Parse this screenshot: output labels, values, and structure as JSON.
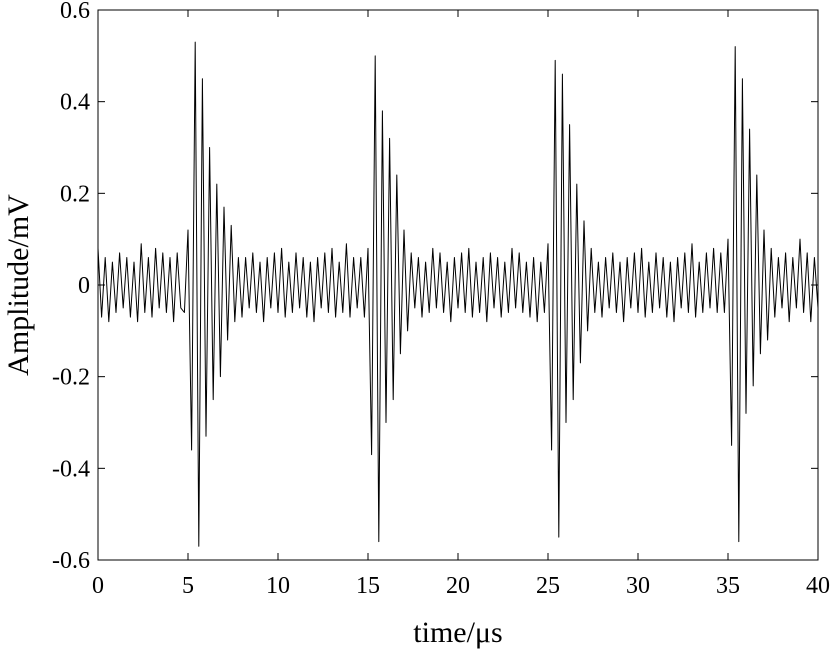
{
  "chart_data": {
    "type": "line",
    "xlabel": "time/μs",
    "ylabel": "Amplitude/mV",
    "xlim": [
      0,
      40
    ],
    "ylim": [
      -0.6,
      0.6
    ],
    "xticks": [
      0,
      5,
      10,
      15,
      20,
      25,
      30,
      35,
      40
    ],
    "yticks": [
      -0.6,
      -0.4,
      -0.2,
      0,
      0.2,
      0.4,
      0.6
    ],
    "color": "#000000",
    "x": [
      0,
      0.2,
      0.4,
      0.6,
      0.8,
      1,
      1.2,
      1.4,
      1.6,
      1.8,
      2,
      2.2,
      2.4,
      2.6,
      2.8,
      3,
      3.2,
      3.4,
      3.6,
      3.8,
      4,
      4.2,
      4.4,
      4.6,
      4.8,
      5,
      5.2,
      5.4,
      5.6,
      5.8,
      6,
      6.2,
      6.4,
      6.6,
      6.8,
      7,
      7.2,
      7.4,
      7.6,
      7.8,
      8,
      8.2,
      8.4,
      8.6,
      8.8,
      9,
      9.2,
      9.4,
      9.6,
      9.8,
      10,
      10.2,
      10.4,
      10.6,
      10.8,
      11,
      11.2,
      11.4,
      11.6,
      11.8,
      12,
      12.2,
      12.4,
      12.6,
      12.8,
      13,
      13.2,
      13.4,
      13.6,
      13.8,
      14,
      14.2,
      14.4,
      14.6,
      14.8,
      15,
      15.2,
      15.4,
      15.6,
      15.8,
      16,
      16.2,
      16.4,
      16.6,
      16.8,
      17,
      17.2,
      17.4,
      17.6,
      17.8,
      18,
      18.2,
      18.4,
      18.6,
      18.8,
      19,
      19.2,
      19.4,
      19.6,
      19.8,
      20,
      20.2,
      20.4,
      20.6,
      20.8,
      21,
      21.2,
      21.4,
      21.6,
      21.8,
      22,
      22.2,
      22.4,
      22.6,
      22.8,
      23,
      23.2,
      23.4,
      23.6,
      23.8,
      24,
      24.2,
      24.4,
      24.6,
      24.8,
      25,
      25.2,
      25.4,
      25.6,
      25.8,
      26,
      26.2,
      26.4,
      26.6,
      26.8,
      27,
      27.2,
      27.4,
      27.6,
      27.8,
      28,
      28.2,
      28.4,
      28.6,
      28.8,
      29,
      29.2,
      29.4,
      29.6,
      29.8,
      30,
      30.2,
      30.4,
      30.6,
      30.8,
      31,
      31.2,
      31.4,
      31.6,
      31.8,
      32,
      32.2,
      32.4,
      32.6,
      32.8,
      33,
      33.2,
      33.4,
      33.6,
      33.8,
      34,
      34.2,
      34.4,
      34.6,
      34.8,
      35,
      35.2,
      35.4,
      35.6,
      35.8,
      36,
      36.2,
      36.4,
      36.6,
      36.8,
      37,
      37.2,
      37.4,
      37.6,
      37.8,
      38,
      38.2,
      38.4,
      38.6,
      38.8,
      39,
      39.2,
      39.4,
      39.6,
      39.8,
      40
    ],
    "values": [
      0.08,
      -0.07,
      0.06,
      -0.08,
      0.05,
      -0.06,
      0.07,
      -0.05,
      0.06,
      -0.07,
      0.05,
      -0.08,
      0.09,
      -0.06,
      0.06,
      -0.07,
      0.08,
      -0.05,
      0.07,
      -0.06,
      0.06,
      -0.08,
      0.07,
      -0.05,
      -0.06,
      0.12,
      -0.36,
      0.53,
      -0.57,
      0.45,
      -0.33,
      0.3,
      -0.25,
      0.22,
      -0.2,
      0.17,
      -0.12,
      0.13,
      -0.08,
      0.06,
      -0.07,
      0.06,
      -0.05,
      0.07,
      -0.06,
      0.05,
      -0.08,
      0.06,
      -0.05,
      0.07,
      -0.06,
      0.08,
      -0.07,
      0.05,
      -0.06,
      0.07,
      -0.05,
      0.06,
      -0.07,
      0.05,
      -0.08,
      0.06,
      -0.05,
      0.07,
      -0.06,
      0.08,
      -0.07,
      0.05,
      -0.06,
      0.09,
      -0.07,
      0.06,
      -0.05,
      0.06,
      -0.07,
      0.08,
      -0.37,
      0.5,
      -0.56,
      0.38,
      -0.3,
      0.32,
      -0.25,
      0.24,
      -0.15,
      0.12,
      -0.1,
      0.07,
      -0.05,
      0.06,
      -0.07,
      0.05,
      -0.06,
      0.08,
      -0.05,
      0.07,
      -0.06,
      0.05,
      -0.08,
      0.06,
      -0.05,
      0.07,
      -0.06,
      0.08,
      -0.07,
      0.05,
      -0.06,
      0.06,
      -0.08,
      0.07,
      -0.05,
      0.06,
      -0.07,
      0.05,
      -0.06,
      0.08,
      -0.05,
      0.07,
      -0.06,
      0.05,
      -0.07,
      0.06,
      -0.08,
      0.05,
      -0.06,
      0.09,
      -0.36,
      0.49,
      -0.55,
      0.46,
      -0.3,
      0.35,
      -0.25,
      0.22,
      -0.17,
      0.14,
      -0.1,
      0.08,
      -0.06,
      0.05,
      -0.07,
      0.06,
      -0.05,
      0.07,
      -0.06,
      0.05,
      -0.08,
      0.06,
      -0.05,
      0.07,
      -0.06,
      0.08,
      -0.07,
      0.05,
      -0.06,
      0.07,
      -0.05,
      0.06,
      -0.07,
      0.05,
      -0.08,
      0.06,
      -0.05,
      0.07,
      -0.06,
      0.09,
      -0.07,
      0.05,
      -0.06,
      0.07,
      -0.05,
      0.08,
      -0.06,
      0.07,
      -0.06,
      0.1,
      -0.35,
      0.52,
      -0.56,
      0.45,
      -0.28,
      0.34,
      -0.22,
      0.24,
      -0.15,
      0.12,
      -0.12,
      0.08,
      -0.07,
      0.06,
      -0.05,
      0.07,
      -0.08,
      0.06,
      -0.05,
      0.1,
      -0.06,
      0.07,
      -0.08,
      0.06,
      -0.05
    ]
  }
}
